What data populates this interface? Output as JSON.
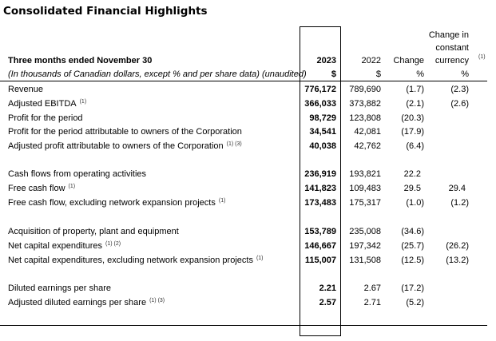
{
  "title": "Consolidated Financial Highlights",
  "header": {
    "period_label": "Three months ended November 30",
    "units_label": "(In thousands of Canadian dollars, except % and per share data) (unaudited)",
    "col_2023": "2023",
    "col_2022": "2022",
    "col_change": "Change",
    "col_constant_line1": "Change in",
    "col_constant_line2": "constant",
    "col_constant_line3": "currency",
    "col_constant_note": "(1)",
    "unit_2023": "$",
    "unit_2022": "$",
    "unit_change": "%",
    "unit_constant": "%"
  },
  "groups": [
    [
      {
        "label": "Revenue",
        "note": "",
        "v2023": "776,172",
        "v2022": "789,690",
        "change": "(1.7)",
        "constant": "(2.3)"
      },
      {
        "label": "Adjusted EBITDA",
        "note": "(1)",
        "v2023": "366,033",
        "v2022": "373,882",
        "change": "(2.1)",
        "constant": "(2.6)"
      },
      {
        "label": "Profit for the period",
        "note": "",
        "v2023": "98,729",
        "v2022": "123,808",
        "change": "(20.3)",
        "constant": ""
      },
      {
        "label": "Profit for the period attributable to owners of the Corporation",
        "note": "",
        "v2023": "34,541",
        "v2022": "42,081",
        "change": "(17.9)",
        "constant": ""
      },
      {
        "label": "Adjusted profit attributable to owners of the Corporation",
        "note": "(1) (3)",
        "v2023": "40,038",
        "v2022": "42,762",
        "change": "(6.4)",
        "constant": ""
      }
    ],
    [
      {
        "label": "Cash flows from operating activities",
        "note": "",
        "v2023": "236,919",
        "v2022": "193,821",
        "change": "22.2",
        "constant": ""
      },
      {
        "label": "Free cash flow",
        "note": "(1)",
        "v2023": "141,823",
        "v2022": "109,483",
        "change": "29.5",
        "constant": "29.4"
      },
      {
        "label": "Free cash flow, excluding network expansion projects",
        "note": "(1)",
        "v2023": "173,483",
        "v2022": "175,317",
        "change": "(1.0)",
        "constant": "(1.2)"
      }
    ],
    [
      {
        "label": "Acquisition of property, plant and equipment",
        "note": "",
        "v2023": "153,789",
        "v2022": "235,008",
        "change": "(34.6)",
        "constant": ""
      },
      {
        "label": "Net capital expenditures",
        "note": "(1) (2)",
        "v2023": "146,667",
        "v2022": "197,342",
        "change": "(25.7)",
        "constant": "(26.2)"
      },
      {
        "label": "Net capital expenditures, excluding network expansion projects",
        "note": "(1)",
        "v2023": "115,007",
        "v2022": "131,508",
        "change": "(12.5)",
        "constant": "(13.2)"
      }
    ],
    [
      {
        "label": "Diluted earnings per share",
        "note": "",
        "v2023": "2.21",
        "v2022": "2.67",
        "change": "(17.2)",
        "constant": ""
      },
      {
        "label": "Adjusted diluted earnings per share",
        "note": "(1) (3)",
        "v2023": "2.57",
        "v2022": "2.71",
        "change": "(5.2)",
        "constant": ""
      }
    ]
  ]
}
